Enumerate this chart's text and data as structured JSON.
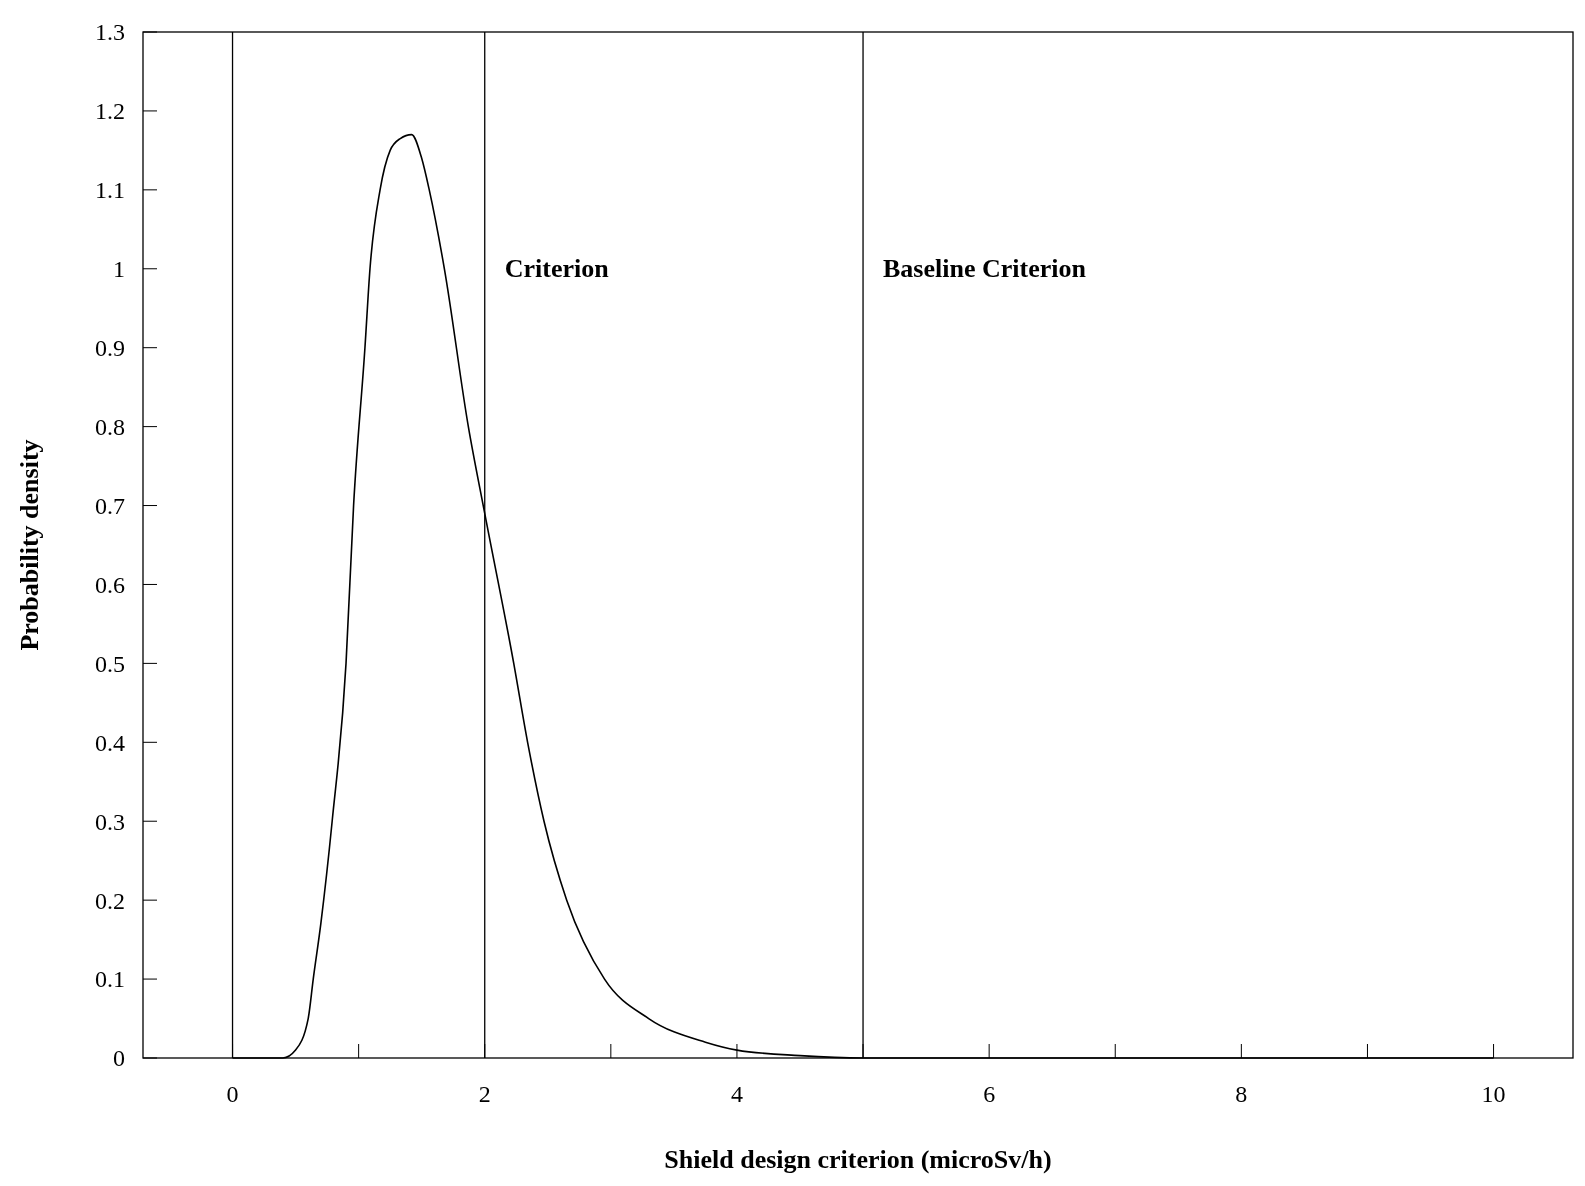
{
  "chart_data": {
    "type": "line",
    "xlabel": "Shield design criterion (microSv/h)",
    "ylabel": "Probability density",
    "x": [
      0,
      0.4,
      0.5,
      0.6,
      0.64,
      0.7,
      0.79,
      0.9,
      0.96,
      1.05,
      1.09,
      1.17,
      1.25,
      1.33,
      1.42,
      1.5,
      1.56,
      1.68,
      1.87,
      2,
      2.23,
      2.34,
      2.47,
      2.65,
      2.95,
      3.3,
      3.75,
      4,
      4.5,
      5,
      6,
      8,
      10
    ],
    "series": [
      {
        "color": "#000000",
        "values": [
          0,
          0,
          0.01,
          0.05,
          0.1,
          0.17,
          0.3,
          0.5,
          0.7,
          0.9,
          1,
          1.1,
          1.15,
          1.165,
          1.17,
          1.14,
          1.1,
          1,
          0.8,
          0.69,
          0.5,
          0.4,
          0.3,
          0.2,
          0.1,
          0.05,
          0.02,
          0.01,
          0.003,
          0,
          0,
          0,
          0
        ]
      }
    ],
    "xlim": [
      -0.71,
      10.63
    ],
    "ylim": [
      0,
      1.3
    ],
    "xticks": [
      0,
      {
        "value": 1,
        "label": null
      },
      2,
      {
        "value": 3,
        "label": null
      },
      4,
      {
        "value": 5,
        "label": null
      },
      6,
      {
        "value": 7,
        "label": null
      },
      8,
      {
        "value": 9,
        "label": null
      },
      10
    ],
    "yticks": [
      0,
      0.1,
      0.2,
      0.3,
      0.4,
      0.5,
      0.6,
      0.7,
      0.8,
      0.9,
      1,
      1.1,
      1.2,
      1.3
    ],
    "ref_lines": [
      {
        "axis": "x",
        "value": 0,
        "label": null
      },
      {
        "axis": "x",
        "value": 2,
        "label": "Criterion"
      },
      {
        "axis": "x",
        "value": 5,
        "label": "Baseline Criterion"
      }
    ],
    "grid": false,
    "marker": "none",
    "line_style": "solid"
  }
}
